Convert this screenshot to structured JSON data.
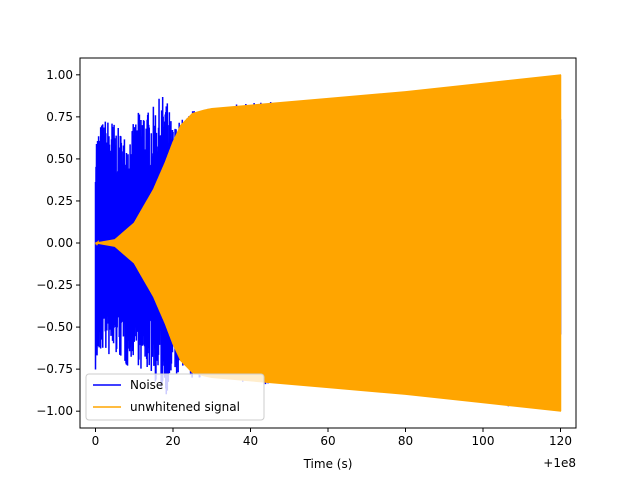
{
  "chart_data": {
    "type": "line",
    "title": "",
    "xlabel": "Time (s)",
    "ylabel": "",
    "x_offset_label": "+1e8",
    "xlim": [
      -4,
      124
    ],
    "ylim": [
      -1.1,
      1.1
    ],
    "x_ticks": [
      0,
      20,
      40,
      60,
      80,
      100,
      120
    ],
    "y_ticks": [
      -1.0,
      -0.75,
      -0.5,
      -0.25,
      0.0,
      0.25,
      0.5,
      0.75,
      1.0
    ],
    "x_tick_labels": [
      "0",
      "20",
      "40",
      "60",
      "80",
      "100",
      "120"
    ],
    "y_tick_labels": [
      "−1.00",
      "−0.75",
      "−0.50",
      "−0.25",
      "0.00",
      "0.25",
      "0.50",
      "0.75",
      "1.00"
    ],
    "grid": false,
    "legend_position": "lower-left",
    "series": [
      {
        "name": "Noise",
        "color": "#0000ff",
        "style": "dense-oscillation",
        "envelope": {
          "x": [
            0,
            2,
            4,
            6,
            8,
            10,
            12,
            14,
            16,
            18,
            20,
            25,
            30,
            40,
            55,
            70,
            90,
            106,
            120
          ],
          "upper": [
            0.66,
            0.74,
            0.75,
            0.68,
            0.64,
            0.72,
            0.83,
            0.78,
            0.85,
            0.9,
            0.7,
            0.8,
            0.8,
            0.84,
            0.84,
            0.85,
            0.88,
            0.99,
            0.96
          ],
          "lower": [
            -0.78,
            -0.64,
            -0.7,
            -0.68,
            -0.75,
            -0.67,
            -0.78,
            -0.76,
            -0.86,
            -0.92,
            -0.8,
            -0.82,
            -0.8,
            -0.84,
            -0.84,
            -0.86,
            -0.88,
            -0.98,
            -0.96
          ]
        }
      },
      {
        "name": "unwhitened signal",
        "color": "#ffa500",
        "style": "dense-oscillation",
        "envelope": {
          "x": [
            0,
            5,
            10,
            15,
            18,
            20,
            22,
            25,
            28,
            30,
            40,
            60,
            80,
            100,
            120
          ],
          "upper": [
            0.0,
            0.02,
            0.12,
            0.32,
            0.48,
            0.6,
            0.7,
            0.77,
            0.79,
            0.8,
            0.82,
            0.86,
            0.9,
            0.95,
            1.0
          ],
          "lower": [
            0.0,
            -0.02,
            -0.12,
            -0.32,
            -0.48,
            -0.6,
            -0.7,
            -0.77,
            -0.79,
            -0.8,
            -0.82,
            -0.86,
            -0.9,
            -0.95,
            -1.0
          ]
        }
      }
    ]
  }
}
